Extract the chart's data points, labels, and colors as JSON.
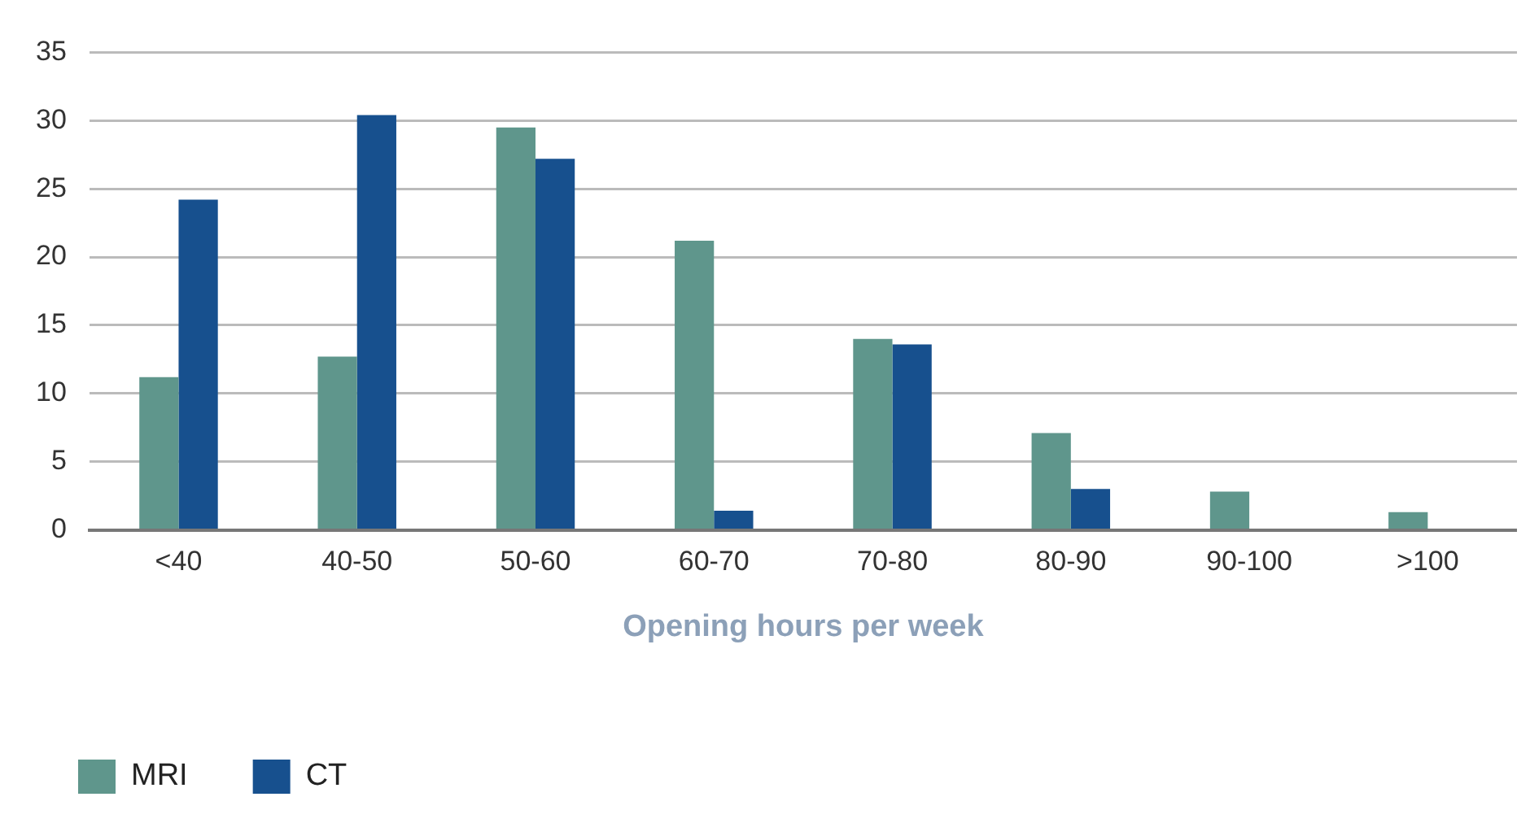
{
  "chart_data": {
    "type": "bar",
    "xlabel": "Opening hours per week",
    "categories": [
      "<40",
      "40-50",
      "50-60",
      "60-70",
      "70-80",
      "80-90",
      "90-100",
      ">100"
    ],
    "series": [
      {
        "name": "MRI",
        "color": "#5f968c",
        "values": [
          11.2,
          12.7,
          29.5,
          21.2,
          14.0,
          7.1,
          2.8,
          1.3
        ]
      },
      {
        "name": "CT",
        "color": "#17508e",
        "values": [
          24.2,
          30.4,
          27.2,
          1.4,
          13.6,
          3.0,
          0,
          0
        ]
      }
    ],
    "ylim": [
      0,
      35
    ],
    "yticks": [
      0,
      5,
      10,
      15,
      20,
      25,
      30,
      35
    ],
    "grid": "y",
    "legend": "bottom left"
  }
}
